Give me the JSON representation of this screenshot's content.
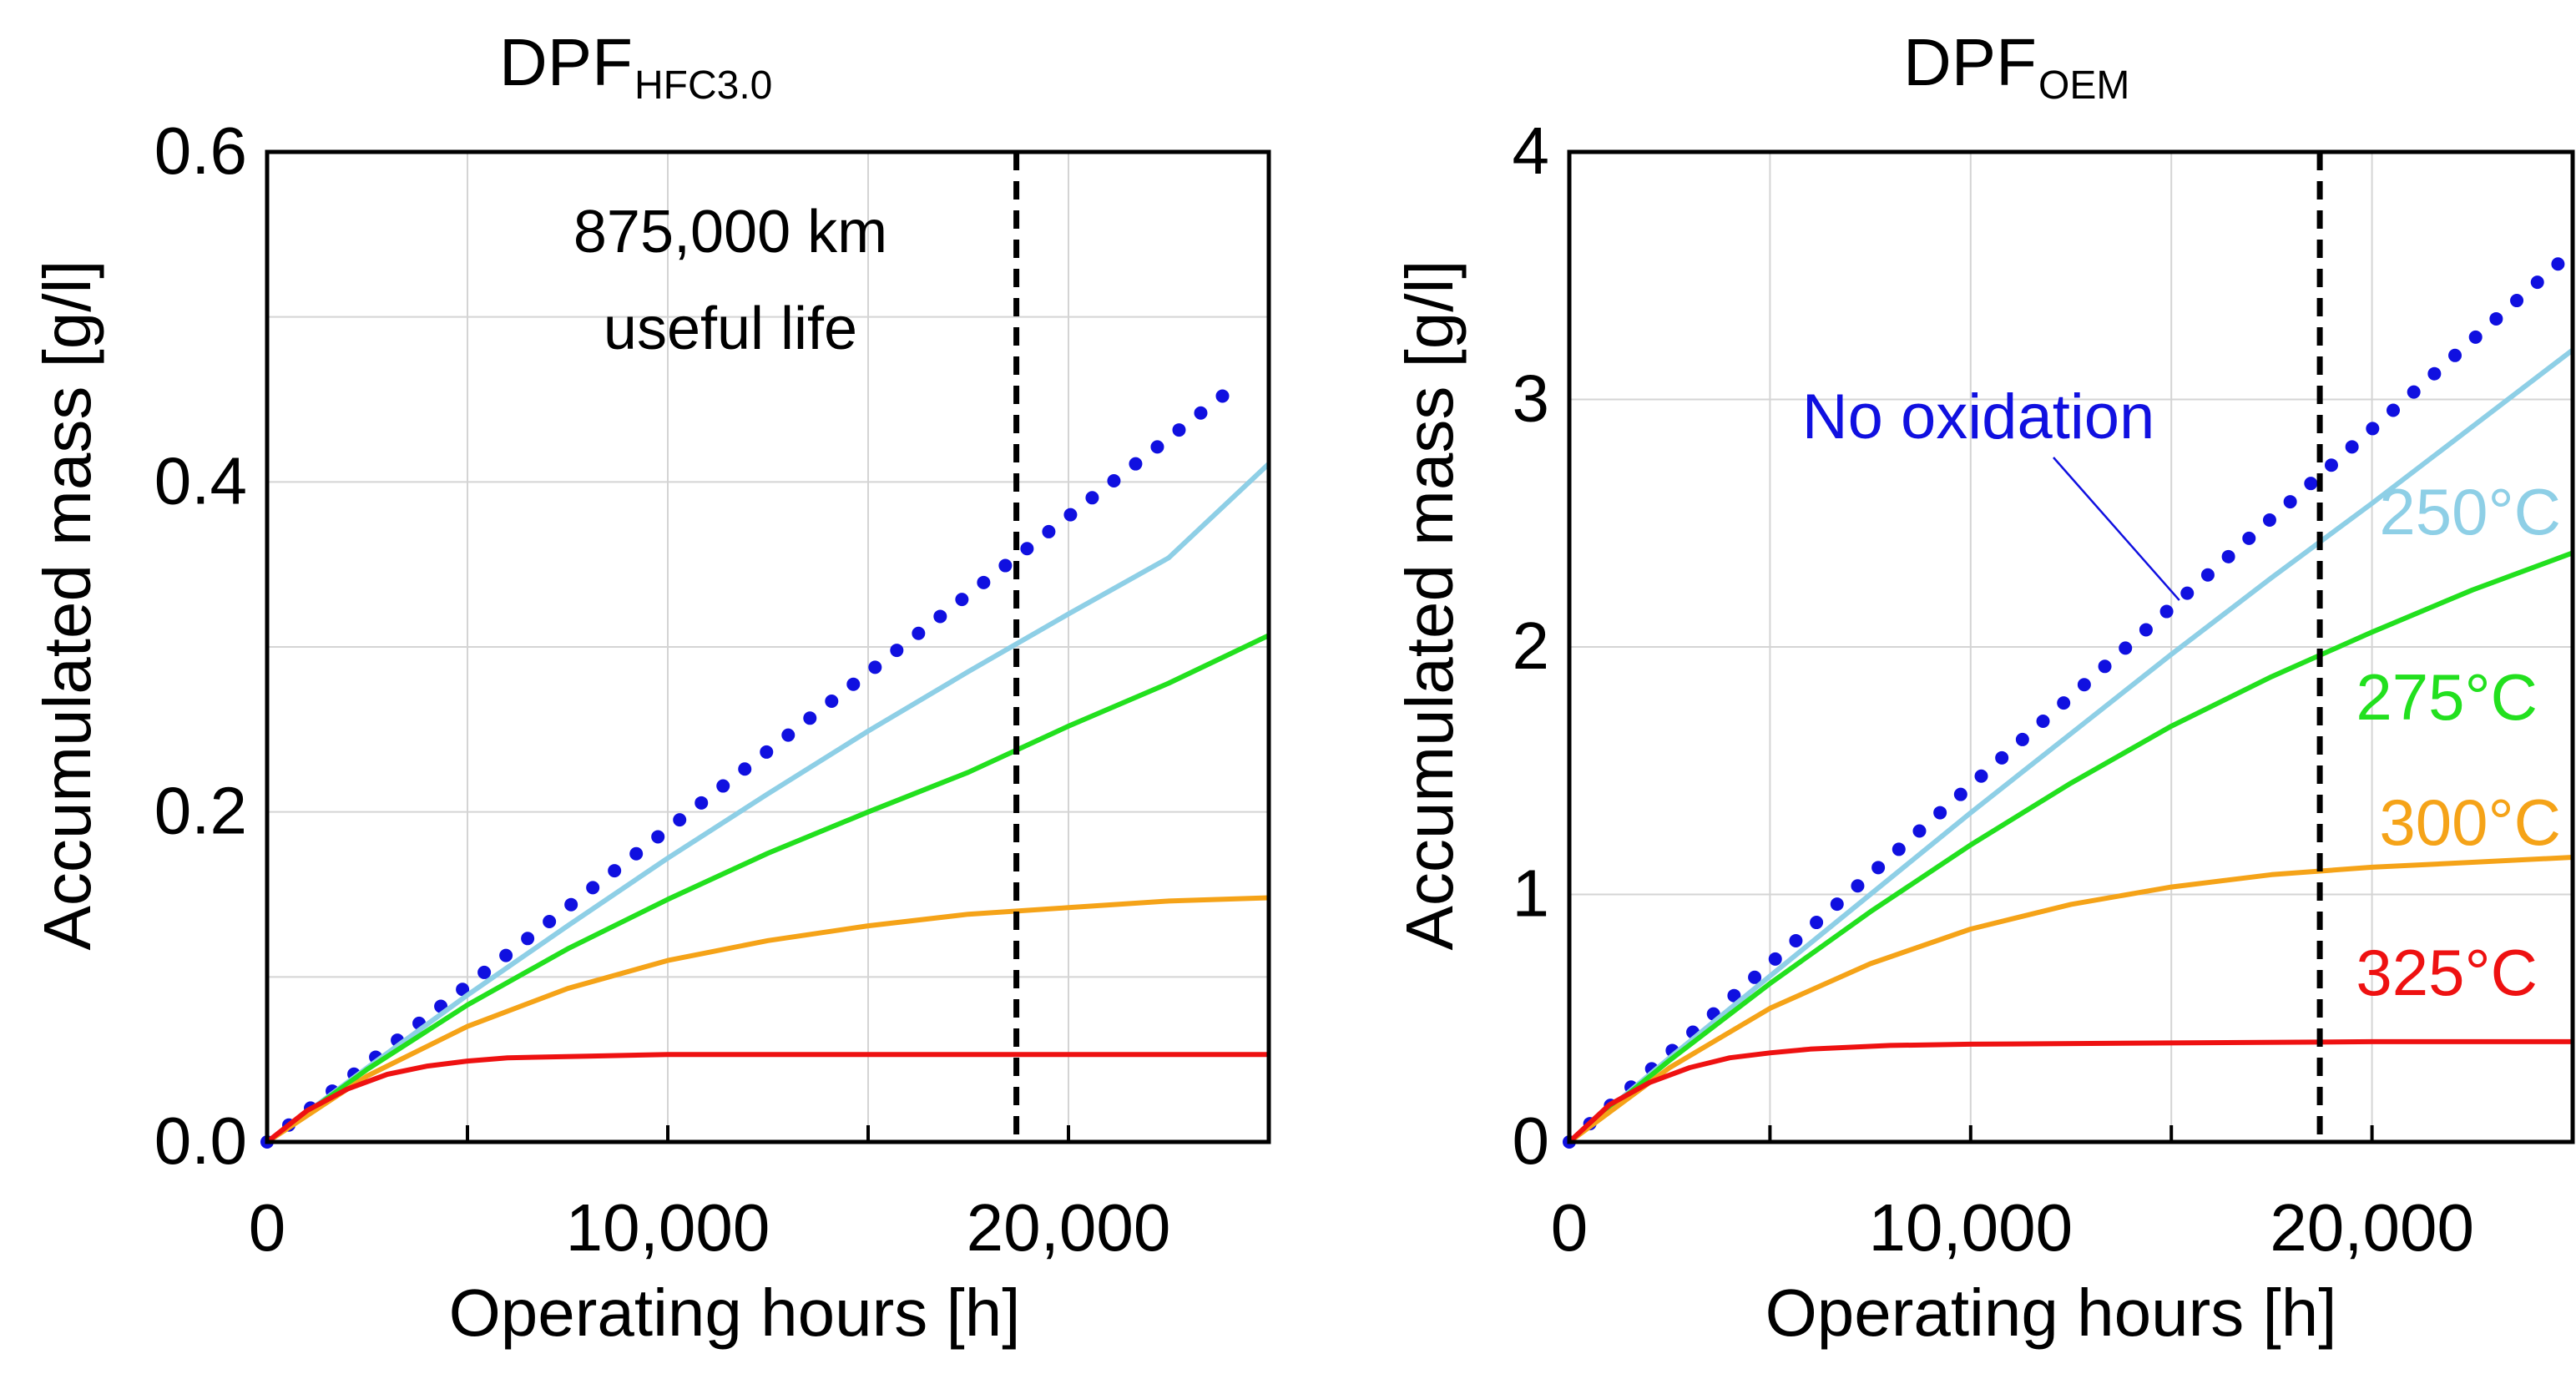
{
  "colors": {
    "no_oxidation": "#1010e0",
    "t250": "#8ecfe6",
    "t275": "#22e01e",
    "t300": "#f5a318",
    "t325": "#ee1111",
    "useful_life_line": "#000000",
    "grid": "#d4d4d4",
    "axes": "#000000"
  },
  "chart_data": [
    {
      "type": "line",
      "title_main": "DPF",
      "title_sub": "HFC3.0",
      "xlabel": "Operating hours [h]",
      "ylabel": "Accumulated mass [g/l]",
      "xlim": [
        0,
        25000
      ],
      "ylim": [
        0,
        0.6
      ],
      "xticks": [
        0,
        10000,
        20000
      ],
      "xtick_labels": [
        "0",
        "10,000",
        "20,000"
      ],
      "yticks": [
        0,
        0.2,
        0.4,
        0.6
      ],
      "ytick_labels": [
        "0.0",
        "0.2",
        "0.4",
        "0.6"
      ],
      "x_minor_gridlines": [
        5000,
        15000,
        25000
      ],
      "y_minor_gridlines": [
        0.1,
        0.3,
        0.5
      ],
      "useful_life_hours": 18700,
      "annotation": [
        "875,000 km",
        "useful life"
      ],
      "series": [
        {
          "name": "No oxidation",
          "key": "no_oxidation",
          "style": "dotted",
          "x": [
            0,
            24000
          ],
          "y": [
            0,
            0.455
          ]
        },
        {
          "name": "250°C",
          "key": "t250",
          "style": "solid",
          "x": [
            0,
            2500,
            5000,
            7500,
            10000,
            12500,
            15000,
            17500,
            20000,
            22500,
            25000
          ],
          "y": [
            0,
            0.045,
            0.089,
            0.131,
            0.172,
            0.211,
            0.249,
            0.285,
            0.32,
            0.354,
            0.411
          ]
        },
        {
          "name": "275°C",
          "key": "t275",
          "style": "solid",
          "x": [
            0,
            2500,
            5000,
            7500,
            10000,
            12500,
            15000,
            17500,
            20000,
            22500,
            25000
          ],
          "y": [
            0,
            0.044,
            0.083,
            0.117,
            0.147,
            0.175,
            0.2,
            0.224,
            0.252,
            0.278,
            0.307
          ]
        },
        {
          "name": "300°C",
          "key": "t300",
          "style": "solid",
          "x": [
            0,
            2500,
            5000,
            7500,
            10000,
            12500,
            15000,
            17500,
            20000,
            22500,
            25000
          ],
          "y": [
            0,
            0.04,
            0.07,
            0.093,
            0.11,
            0.122,
            0.131,
            0.138,
            0.142,
            0.146,
            0.148
          ]
        },
        {
          "name": "325°C",
          "key": "t325",
          "style": "solid",
          "x": [
            0,
            1000,
            2000,
            3000,
            4000,
            5000,
            6000,
            8000,
            10000,
            15000,
            20000,
            25000
          ],
          "y": [
            0,
            0.019,
            0.032,
            0.041,
            0.046,
            0.049,
            0.051,
            0.052,
            0.053,
            0.053,
            0.053,
            0.053
          ]
        }
      ]
    },
    {
      "type": "line",
      "title_main": "DPF",
      "title_sub": "OEM",
      "xlabel": "Operating hours [h]",
      "ylabel": "Accumulated mass [g/l]",
      "xlim": [
        0,
        25000
      ],
      "ylim": [
        0,
        4
      ],
      "xticks": [
        0,
        10000,
        20000
      ],
      "xtick_labels": [
        "0",
        "10,000",
        "20,000"
      ],
      "yticks": [
        0,
        1,
        2,
        3,
        4
      ],
      "ytick_labels": [
        "0",
        "1",
        "2",
        "3",
        "4"
      ],
      "x_minor_gridlines": [
        5000,
        15000,
        25000
      ],
      "y_minor_gridlines": [],
      "useful_life_hours": 18700,
      "no_oxidation_label": "No oxidation",
      "series": [
        {
          "name": "No oxidation",
          "key": "no_oxidation",
          "style": "dotted",
          "x": [
            0,
            25000
          ],
          "y": [
            0,
            3.6
          ]
        },
        {
          "name": "250°C",
          "key": "t250",
          "style": "solid",
          "label": "250°C",
          "x": [
            0,
            2500,
            5000,
            7500,
            10000,
            12500,
            15000,
            17500,
            20000,
            22500,
            25000
          ],
          "y": [
            0,
            0.34,
            0.67,
            1.0,
            1.33,
            1.65,
            1.97,
            2.28,
            2.58,
            2.89,
            3.2
          ]
        },
        {
          "name": "275°C",
          "key": "t275",
          "style": "solid",
          "label": "275°C",
          "x": [
            0,
            2500,
            5000,
            7500,
            10000,
            12500,
            15000,
            17500,
            20000,
            22500,
            25000
          ],
          "y": [
            0,
            0.33,
            0.64,
            0.93,
            1.2,
            1.45,
            1.68,
            1.88,
            2.06,
            2.23,
            2.38
          ]
        },
        {
          "name": "300°C",
          "key": "t300",
          "style": "solid",
          "label": "300°C",
          "x": [
            0,
            2500,
            5000,
            7500,
            10000,
            12500,
            15000,
            17500,
            20000,
            22500,
            25000
          ],
          "y": [
            0,
            0.3,
            0.54,
            0.72,
            0.86,
            0.96,
            1.03,
            1.08,
            1.11,
            1.13,
            1.15
          ]
        },
        {
          "name": "325°C",
          "key": "t325",
          "style": "solid",
          "label": "325°C",
          "x": [
            0,
            1000,
            2000,
            3000,
            4000,
            5000,
            6000,
            8000,
            10000,
            15000,
            20000,
            25000
          ],
          "y": [
            0,
            0.15,
            0.24,
            0.3,
            0.34,
            0.36,
            0.375,
            0.39,
            0.395,
            0.4,
            0.405,
            0.405
          ]
        }
      ]
    }
  ]
}
